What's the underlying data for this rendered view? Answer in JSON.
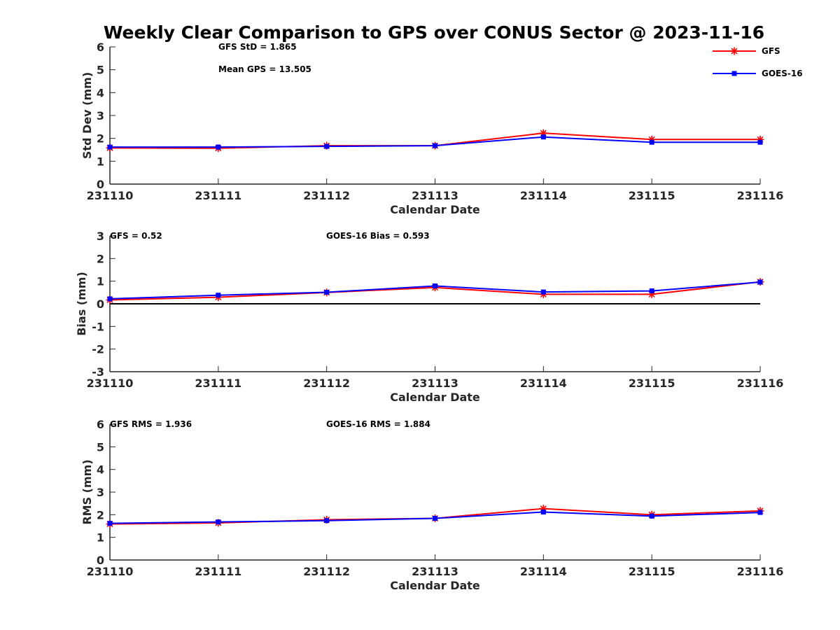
{
  "title": "Weekly Clear Comparison to GPS over CONUS Sector @ 2023-11-16",
  "legend": {
    "placement": "top-right",
    "entries": [
      {
        "name": "GFS",
        "color": "#ff0000",
        "marker": "asterisk"
      },
      {
        "name": "GOES-16",
        "color": "#0000ff",
        "marker": "square"
      }
    ]
  },
  "chart_data": [
    {
      "type": "line",
      "xlabel": "Calendar Date",
      "ylabel": "Std Dev (mm)",
      "categories": [
        "231110",
        "231111",
        "231112",
        "231113",
        "231114",
        "231115",
        "231116"
      ],
      "ylim": [
        0,
        6
      ],
      "yticks": [
        "0",
        "1",
        "2",
        "3",
        "4",
        "5",
        "6"
      ],
      "zero_line": false,
      "annotations": [
        "GFS StD = 1.865",
        "Mean GPS = 13.505"
      ],
      "series": [
        {
          "name": "GFS",
          "values": [
            1.58,
            1.57,
            1.68,
            1.68,
            2.23,
            1.95,
            1.95
          ]
        },
        {
          "name": "GOES-16",
          "values": [
            1.62,
            1.62,
            1.65,
            1.68,
            2.06,
            1.83,
            1.83
          ]
        }
      ]
    },
    {
      "type": "line",
      "xlabel": "Calendar Date",
      "ylabel": "Bias (mm)",
      "categories": [
        "231110",
        "231111",
        "231112",
        "231113",
        "231114",
        "231115",
        "231116"
      ],
      "ylim": [
        -3,
        3
      ],
      "yticks": [
        "-3",
        "-2",
        "-1",
        "0",
        "1",
        "2",
        "3"
      ],
      "zero_line": true,
      "annotations": [
        "GFS = 0.52",
        "GOES-16 Bias  = 0.593"
      ],
      "series": [
        {
          "name": "GFS",
          "values": [
            0.17,
            0.29,
            0.5,
            0.72,
            0.42,
            0.42,
            0.97
          ]
        },
        {
          "name": "GOES-16",
          "values": [
            0.22,
            0.38,
            0.51,
            0.79,
            0.52,
            0.57,
            0.96
          ]
        }
      ]
    },
    {
      "type": "line",
      "xlabel": "Calendar Date",
      "ylabel": "RMS (mm)",
      "categories": [
        "231110",
        "231111",
        "231112",
        "231113",
        "231114",
        "231115",
        "231116"
      ],
      "ylim": [
        0,
        6
      ],
      "yticks": [
        "0",
        "1",
        "2",
        "3",
        "4",
        "5",
        "6"
      ],
      "zero_line": false,
      "annotations": [
        "GFS RMS = 1.936",
        "GOES-16 RMS = 1.884"
      ],
      "series": [
        {
          "name": "GFS",
          "values": [
            1.59,
            1.64,
            1.78,
            1.84,
            2.27,
            2.0,
            2.17
          ]
        },
        {
          "name": "GOES-16",
          "values": [
            1.62,
            1.68,
            1.74,
            1.84,
            2.12,
            1.94,
            2.1
          ]
        }
      ]
    }
  ]
}
